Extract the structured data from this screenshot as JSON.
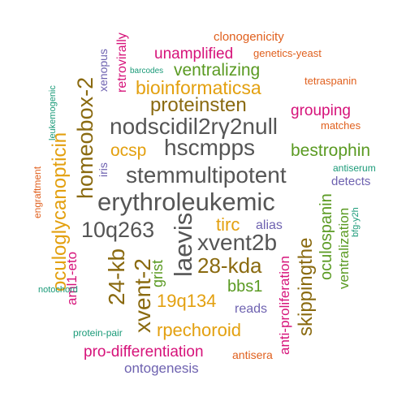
{
  "palette": {
    "gray": "#555555",
    "olive": "#8a6a10",
    "gold": "#e3a00f",
    "green": "#5a9a22",
    "magenta": "#d6137a",
    "orange": "#e0601e",
    "purple": "#6e62b0",
    "teal": "#1a9a78"
  },
  "words": [
    {
      "text": "clonogenicity",
      "color": "orange"
    },
    {
      "text": "unamplified",
      "color": "magenta"
    },
    {
      "text": "genetics-yeast",
      "color": "orange"
    },
    {
      "text": "barcodes",
      "color": "teal"
    },
    {
      "text": "ventralizing",
      "color": "green"
    },
    {
      "text": "tetraspanin",
      "color": "orange"
    },
    {
      "text": "retrovirally",
      "color": "magenta"
    },
    {
      "text": "xenopus",
      "color": "purple"
    },
    {
      "text": "homeobox-2",
      "color": "olive"
    },
    {
      "text": "bioinformaticsa",
      "color": "gold"
    },
    {
      "text": "leukemogenic",
      "color": "teal"
    },
    {
      "text": "proteinsten",
      "color": "olive"
    },
    {
      "text": "grouping",
      "color": "magenta"
    },
    {
      "text": "matches",
      "color": "orange"
    },
    {
      "text": "nodscidil2rγ2null",
      "color": "gray"
    },
    {
      "text": "oculoglycanopticin",
      "color": "gold"
    },
    {
      "text": "ocsp",
      "color": "gold"
    },
    {
      "text": "hscmpps",
      "color": "gray"
    },
    {
      "text": "bestrophin",
      "color": "green"
    },
    {
      "text": "iris",
      "color": "purple"
    },
    {
      "text": "engraftment",
      "color": "orange"
    },
    {
      "text": "stemmultipotent",
      "color": "gray"
    },
    {
      "text": "antiserum",
      "color": "teal"
    },
    {
      "text": "detects",
      "color": "purple"
    },
    {
      "text": "erythroleukemic",
      "color": "gray"
    },
    {
      "text": "laevis",
      "color": "gray"
    },
    {
      "text": "10q263",
      "color": "gray"
    },
    {
      "text": "tirc",
      "color": "gold"
    },
    {
      "text": "alias",
      "color": "purple"
    },
    {
      "text": "xvent2b",
      "color": "gray"
    },
    {
      "text": "bfg-y2h",
      "color": "teal"
    },
    {
      "text": "oculospanin",
      "color": "green"
    },
    {
      "text": "ventralization",
      "color": "green"
    },
    {
      "text": "24-kb",
      "color": "olive"
    },
    {
      "text": "28-kda",
      "color": "olive"
    },
    {
      "text": "aml1-eto",
      "color": "magenta"
    },
    {
      "text": "xvent-2",
      "color": "olive"
    },
    {
      "text": "grist",
      "color": "green"
    },
    {
      "text": "bbs1",
      "color": "green"
    },
    {
      "text": "skippingthe",
      "color": "olive"
    },
    {
      "text": "notochord",
      "color": "teal"
    },
    {
      "text": "19q134",
      "color": "gold"
    },
    {
      "text": "anti-proliferation",
      "color": "magenta"
    },
    {
      "text": "reads",
      "color": "purple"
    },
    {
      "text": "protein-pair",
      "color": "teal"
    },
    {
      "text": "rpechoroid",
      "color": "gold"
    },
    {
      "text": "pro-differentiation",
      "color": "magenta"
    },
    {
      "text": "antisera",
      "color": "orange"
    },
    {
      "text": "ontogenesis",
      "color": "purple"
    }
  ]
}
